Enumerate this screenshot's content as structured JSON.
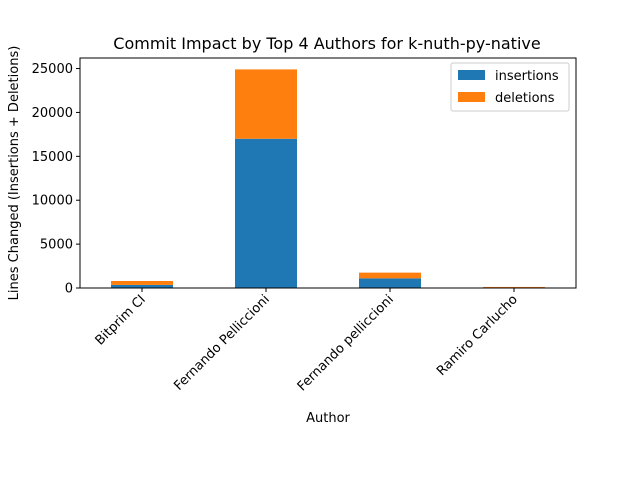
{
  "chart_data": {
    "type": "bar",
    "stacked": true,
    "title": "Commit Impact by Top 4 Authors for k-nuth-py-native",
    "xlabel": "Author",
    "ylabel": "Lines Changed (Insertions + Deletions)",
    "categories": [
      "Bitprim CI",
      "Fernando Pelliccioni",
      "Fernando pelliccioni",
      "Ramiro Carlucho"
    ],
    "series": [
      {
        "name": "insertions",
        "color": "#1f77b4",
        "values": [
          350,
          17000,
          1100,
          60
        ]
      },
      {
        "name": "deletions",
        "color": "#ff7f0e",
        "values": [
          450,
          7900,
          650,
          60
        ]
      }
    ],
    "ylim": [
      0,
      26200
    ],
    "yticks": [
      0,
      5000,
      10000,
      15000,
      20000,
      25000
    ],
    "grid": false,
    "legend_position": "top-right"
  }
}
